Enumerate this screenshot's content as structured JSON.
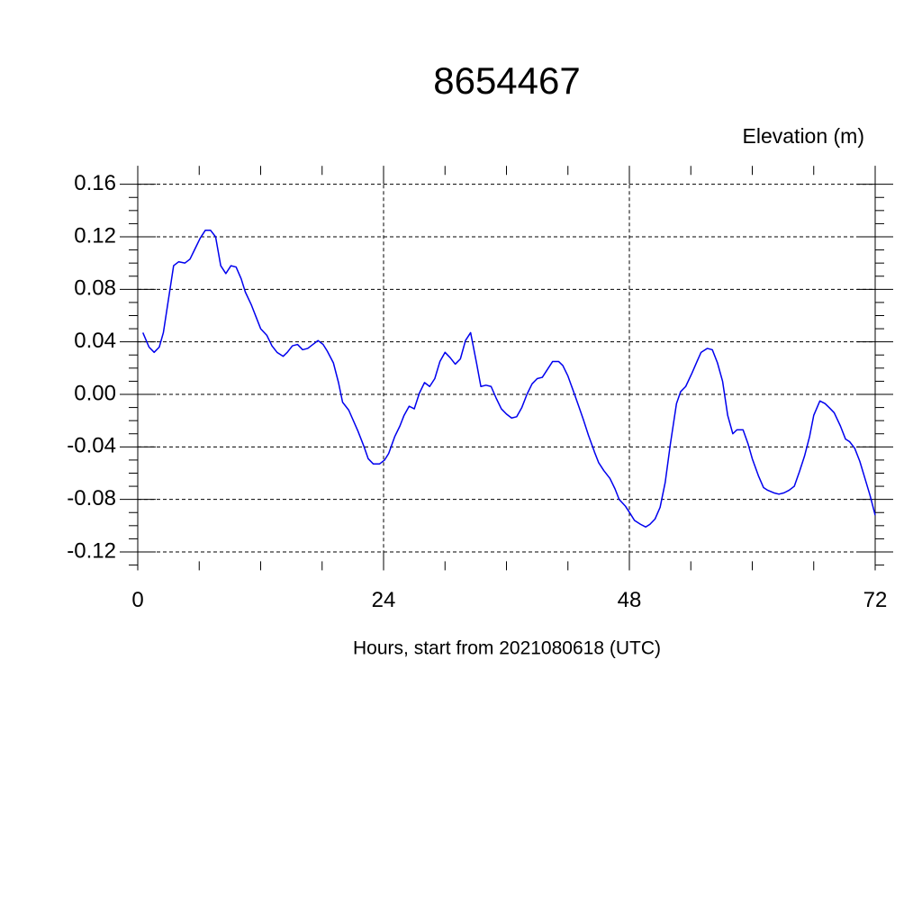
{
  "chart_data": {
    "type": "line",
    "title": "8654467",
    "subtitle": "Elevation (m)",
    "x_label": "Hours, start from 2021080618 (UTC)",
    "xlim": [
      0,
      72
    ],
    "ylim": [
      -0.134,
      0.174
    ],
    "xticks": [
      0,
      24,
      48,
      72
    ],
    "yticks": [
      0.16,
      0.12,
      0.08,
      0.04,
      {
        "value": 0,
        "label": "0.00"
      },
      -0.04,
      -0.08,
      -0.12
    ],
    "xminorticks": [
      6,
      12,
      18,
      30,
      36,
      42,
      54,
      60,
      66
    ],
    "yminorticks": [
      0.15,
      0.14,
      0.13,
      0.11,
      0.1,
      0.09,
      0.07,
      0.06,
      0.05,
      0.03,
      0.02,
      0.01,
      -0.01,
      -0.02,
      -0.03,
      -0.05,
      -0.06,
      -0.07,
      -0.09,
      -0.1,
      -0.11,
      -0.13
    ],
    "grid": true,
    "series": [
      {
        "color": "#0000ee",
        "x": [
          0.5,
          1.1,
          1.6,
          2.1,
          2.5,
          3.5,
          4.0,
          4.6,
          5.1,
          5.6,
          6.1,
          6.6,
          7.1,
          7.6,
          8.1,
          8.6,
          9.1,
          9.6,
          10.1,
          10.5,
          11.1,
          11.6,
          12.0,
          12.6,
          13.1,
          13.6,
          14.2,
          14.6,
          15.1,
          15.6,
          16.1,
          16.6,
          17.1,
          17.6,
          18.1,
          18.5,
          19.1,
          19.6,
          20.0,
          20.6,
          21.5,
          22.1,
          22.5,
          23.0,
          23.6,
          24.1,
          24.5,
          25.1,
          25.6,
          26.0,
          26.5,
          27.0,
          27.5,
          28.0,
          28.5,
          29.0,
          29.5,
          30.0,
          30.5,
          31.0,
          31.5,
          32.0,
          32.5,
          33.1,
          33.5,
          34.0,
          34.5,
          35.0,
          35.5,
          36.0,
          36.5,
          37.0,
          37.5,
          38.0,
          38.5,
          39.0,
          39.5,
          40.0,
          40.5,
          41.1,
          41.5,
          42.0,
          42.6,
          43.1,
          43.5,
          44.0,
          44.6,
          45.0,
          45.5,
          46.1,
          46.6,
          47.0,
          47.6,
          48.1,
          48.5,
          49.1,
          49.6,
          50.0,
          50.5,
          51.0,
          51.5,
          52.0,
          52.6,
          53.0,
          53.5,
          54.1,
          54.6,
          55.0,
          55.6,
          56.1,
          56.6,
          57.1,
          57.6,
          58.1,
          58.5,
          59.1,
          59.6,
          60.0,
          60.6,
          61.1,
          61.5,
          62.1,
          62.6,
          63.1,
          63.6,
          64.1,
          64.6,
          65.1,
          65.6,
          66.0,
          66.6,
          67.1,
          67.5,
          68.0,
          68.6,
          69.1,
          69.5,
          70.0,
          70.5,
          71.0,
          71.5,
          72.0
        ],
        "values": [
          0.047,
          0.036,
          0.032,
          0.036,
          0.047,
          0.098,
          0.101,
          0.1,
          0.103,
          0.111,
          0.119,
          0.125,
          0.125,
          0.12,
          0.098,
          0.092,
          0.098,
          0.097,
          0.088,
          0.078,
          0.068,
          0.058,
          0.05,
          0.045,
          0.037,
          0.032,
          0.029,
          0.032,
          0.037,
          0.038,
          0.034,
          0.035,
          0.038,
          0.041,
          0.038,
          0.033,
          0.024,
          0.009,
          -0.006,
          -0.012,
          -0.028,
          -0.04,
          -0.049,
          -0.053,
          -0.053,
          -0.05,
          -0.045,
          -0.032,
          -0.024,
          -0.016,
          -0.009,
          -0.011,
          0.001,
          0.009,
          0.006,
          0.012,
          0.025,
          0.032,
          0.028,
          0.023,
          0.027,
          0.041,
          0.047,
          0.023,
          0.006,
          0.007,
          0.006,
          -0.003,
          -0.011,
          -0.015,
          -0.018,
          -0.017,
          -0.01,
          0.0,
          0.008,
          0.012,
          0.013,
          0.019,
          0.025,
          0.025,
          0.022,
          0.014,
          0.001,
          -0.01,
          -0.019,
          -0.031,
          -0.044,
          -0.052,
          -0.058,
          -0.064,
          -0.072,
          -0.08,
          -0.085,
          -0.091,
          -0.096,
          -0.099,
          -0.101,
          -0.099,
          -0.095,
          -0.086,
          -0.067,
          -0.038,
          -0.007,
          0.002,
          0.006,
          0.016,
          0.025,
          0.032,
          0.035,
          0.034,
          0.024,
          0.01,
          -0.016,
          -0.03,
          -0.027,
          -0.027,
          -0.038,
          -0.049,
          -0.062,
          -0.071,
          -0.073,
          -0.075,
          -0.076,
          -0.075,
          -0.073,
          -0.07,
          -0.059,
          -0.047,
          -0.032,
          -0.016,
          -0.005,
          -0.007,
          -0.01,
          -0.014,
          -0.024,
          -0.034,
          -0.036,
          -0.041,
          -0.051,
          -0.064,
          -0.077,
          -0.092
        ]
      }
    ]
  }
}
